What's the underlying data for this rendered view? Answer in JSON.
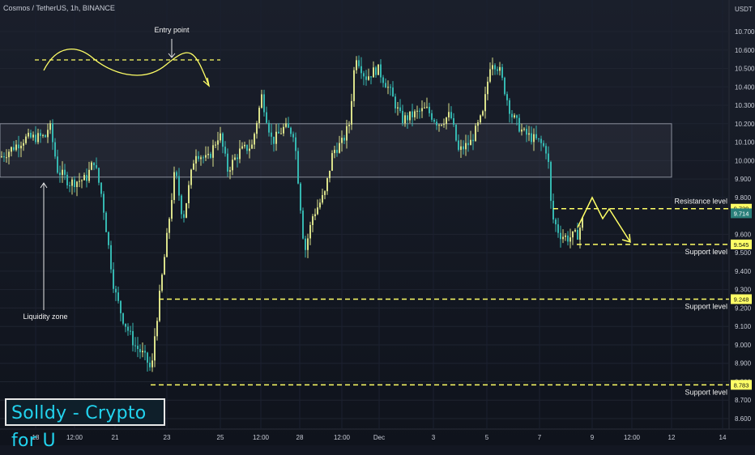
{
  "header": {
    "title": "Cosmos / TetherUS, 1h, BINANCE",
    "unit": "USDT"
  },
  "brand": {
    "label": "Solldy - Crypto for U"
  },
  "colors": {
    "up": "#d9e08a",
    "down": "#35b7b0",
    "annotation": "#ffff66",
    "zone": "#555a66"
  },
  "chart_data": {
    "type": "candlestick",
    "symbol": "Cosmos / TetherUS",
    "timeframe": "1h",
    "exchange": "BINANCE",
    "ylim": [
      8.55,
      10.85
    ],
    "y_ticks": [
      10.7,
      10.6,
      10.5,
      10.4,
      10.3,
      10.2,
      10.1,
      10.0,
      9.9,
      9.8,
      9.6,
      9.5,
      9.4,
      9.3,
      9.2,
      9.1,
      9.0,
      8.9,
      8.8,
      8.7,
      8.6
    ],
    "x_ticks": [
      "18",
      "12:00",
      "21",
      "23",
      "25",
      "12:00",
      "28",
      "12:00",
      "Dec",
      "3",
      "5",
      "7",
      "9",
      "12:00",
      "12",
      "14"
    ],
    "price_series": [
      [
        0,
        10.02
      ],
      [
        30,
        10.12
      ],
      [
        55,
        10.13
      ],
      [
        60,
        10.2
      ],
      [
        70,
        9.95
      ],
      [
        85,
        9.88
      ],
      [
        105,
        9.9
      ],
      [
        115,
        10.0
      ],
      [
        125,
        9.8
      ],
      [
        140,
        9.3
      ],
      [
        150,
        9.15
      ],
      [
        165,
        9.0
      ],
      [
        175,
        8.95
      ],
      [
        182,
        8.9
      ],
      [
        186,
        8.85
      ],
      [
        190,
        9.05
      ],
      [
        197,
        9.3
      ],
      [
        205,
        9.58
      ],
      [
        215,
        9.95
      ],
      [
        225,
        9.68
      ],
      [
        240,
        10.05
      ],
      [
        255,
        10.0
      ],
      [
        270,
        10.15
      ],
      [
        280,
        9.95
      ],
      [
        295,
        10.05
      ],
      [
        310,
        10.08
      ],
      [
        322,
        10.35
      ],
      [
        335,
        10.1
      ],
      [
        350,
        10.18
      ],
      [
        362,
        10.15
      ],
      [
        370,
        9.75
      ],
      [
        375,
        9.5
      ],
      [
        385,
        9.7
      ],
      [
        400,
        9.82
      ],
      [
        410,
        10.05
      ],
      [
        422,
        10.1
      ],
      [
        430,
        10.2
      ],
      [
        438,
        10.58
      ],
      [
        450,
        10.45
      ],
      [
        465,
        10.5
      ],
      [
        480,
        10.38
      ],
      [
        495,
        10.22
      ],
      [
        510,
        10.25
      ],
      [
        525,
        10.28
      ],
      [
        540,
        10.2
      ],
      [
        555,
        10.25
      ],
      [
        565,
        10.05
      ],
      [
        580,
        10.1
      ],
      [
        595,
        10.25
      ],
      [
        605,
        10.55
      ],
      [
        615,
        10.5
      ],
      [
        630,
        10.25
      ],
      [
        645,
        10.15
      ],
      [
        665,
        10.1
      ],
      [
        675,
        10.05
      ],
      [
        680,
        9.7
      ],
      [
        690,
        9.6
      ],
      [
        700,
        9.58
      ],
      [
        712,
        9.6
      ],
      [
        720,
        9.7
      ]
    ],
    "levels": [
      {
        "label": "Resistance level",
        "value": 9.739
      },
      {
        "label": "Support level",
        "value": 9.545
      },
      {
        "label": "Support level",
        "value": 9.248
      },
      {
        "label": "Support level",
        "value": 8.783
      }
    ],
    "price_tags": [
      {
        "text": "9.739",
        "value": 9.739
      },
      {
        "text": "9.714",
        "value": 9.714
      },
      {
        "text": "9.545",
        "value": 9.545
      },
      {
        "text": "9.248",
        "value": 9.248
      },
      {
        "text": "8.783",
        "value": 8.783
      }
    ],
    "zone": {
      "top": 10.2,
      "bottom": 9.91
    },
    "entry_line": 10.55,
    "annotations": {
      "entry": "Entry point",
      "liquidity": "Liquidity zone"
    }
  }
}
